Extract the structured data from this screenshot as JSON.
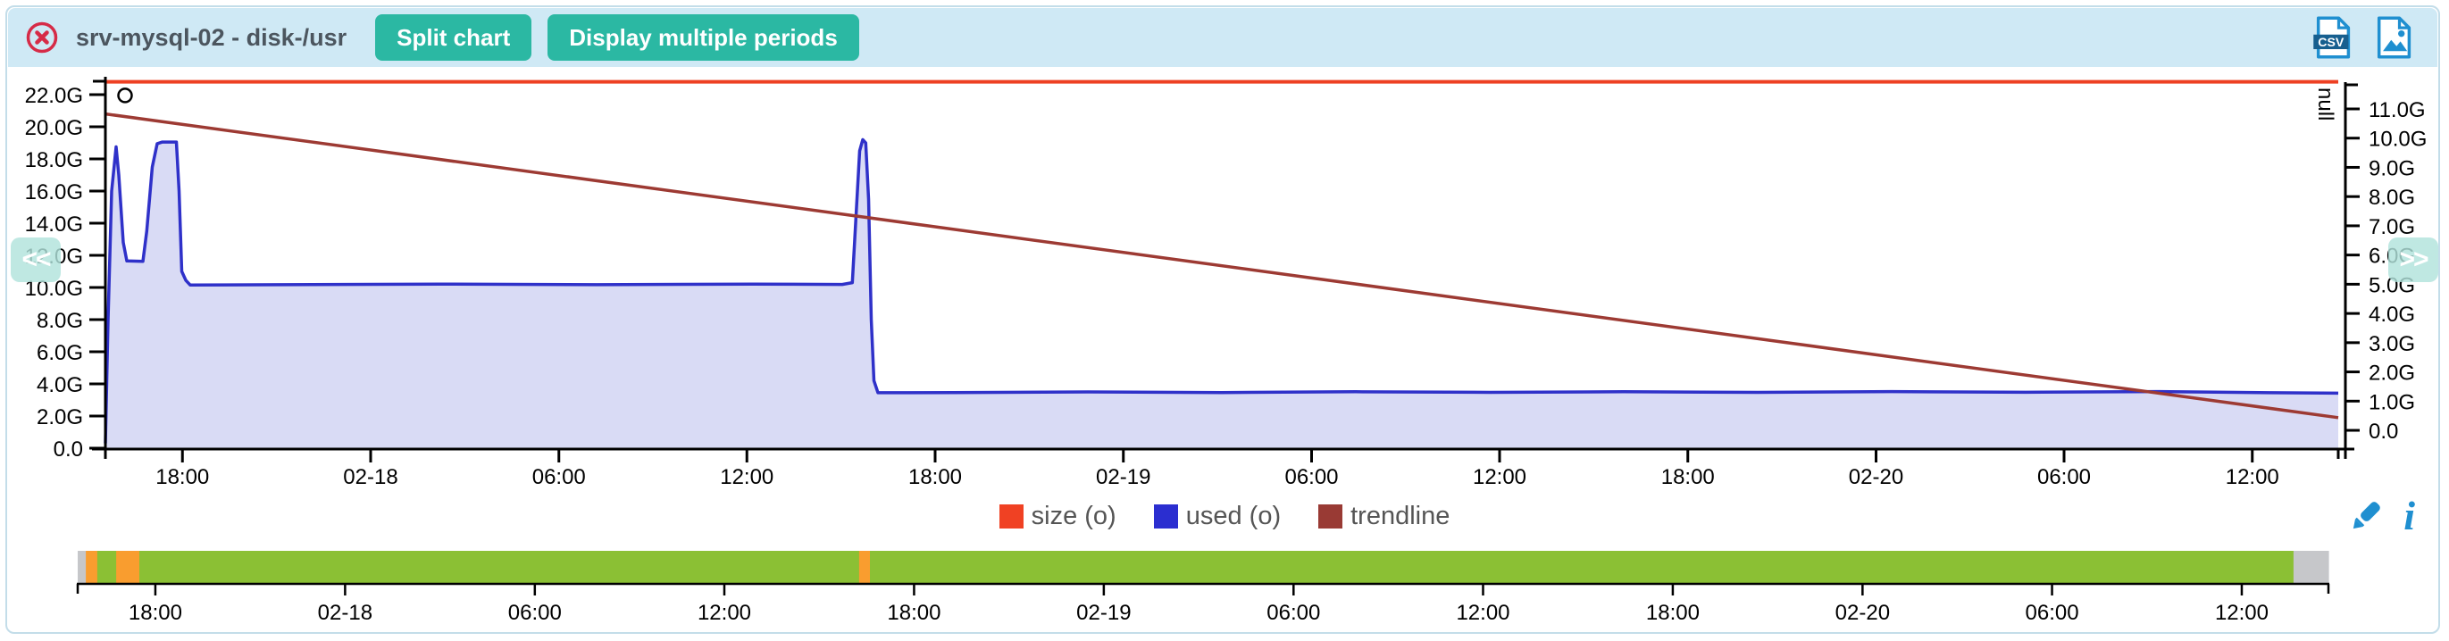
{
  "header": {
    "title": "srv-mysql-02 - disk-/usr",
    "buttons": [
      {
        "label": "Split chart"
      },
      {
        "label": "Display multiple periods"
      }
    ],
    "csv_badge": "CSV"
  },
  "nav": {
    "prev_label": "<<",
    "next_label": ">>"
  },
  "colors": {
    "header_bg": "#cfe9f5",
    "card_border": "#c3dde9",
    "accent_teal": "#2bb8a3",
    "close_red": "#d62b47",
    "icon_blue": "#1f8fd0",
    "axis_black": "#000000",
    "timeline_ok": "#8bc034",
    "timeline_warning": "#f99d2f",
    "timeline_nodata": "#c6c7ca"
  },
  "chart_data": {
    "type": "area",
    "title": "",
    "unit": "G",
    "x_axis": {
      "ticks": [
        {
          "label": "18:00",
          "t": 0.0345
        },
        {
          "label": "02-18",
          "t": 0.1188
        },
        {
          "label": "06:00",
          "t": 0.2031
        },
        {
          "label": "12:00",
          "t": 0.2873
        },
        {
          "label": "18:00",
          "t": 0.3716
        },
        {
          "label": "02-19",
          "t": 0.4559
        },
        {
          "label": "06:00",
          "t": 0.5402
        },
        {
          "label": "12:00",
          "t": 0.6244
        },
        {
          "label": "18:00",
          "t": 0.7087
        },
        {
          "label": "02-20",
          "t": 0.793
        },
        {
          "label": "06:00",
          "t": 0.8772
        },
        {
          "label": "12:00",
          "t": 0.9615
        }
      ]
    },
    "y_axis_left": {
      "tick_labels": [
        "22.0G",
        "20.0G",
        "18.0G",
        "16.0G",
        "14.0G",
        "12.0G",
        "10.0G",
        "8.0G",
        "6.0G",
        "4.0G",
        "2.0G",
        "0.0"
      ],
      "tick_values": [
        22,
        20,
        18,
        16,
        14,
        12,
        10,
        8,
        6,
        4,
        2,
        0
      ],
      "range": [
        0,
        23
      ]
    },
    "y_axis_right": {
      "label": "null",
      "tick_labels": [
        "11.0G",
        "10.0G",
        "9.0G",
        "8.0G",
        "7.0G",
        "6.0G",
        "5.0G",
        "4.0G",
        "3.0G",
        "2.0G",
        "1.0G",
        "0.0"
      ],
      "range": [
        0,
        11.8
      ]
    },
    "series": [
      {
        "name": "size (o)",
        "type": "hline",
        "value": 22.8,
        "color": "#ee4023"
      },
      {
        "name": "used (o)",
        "type": "area",
        "color": "#2f31c9",
        "fill": "#d9dbf5",
        "points": [
          [
            0,
            0.3
          ],
          [
            0.0012,
            8
          ],
          [
            0.0028,
            16
          ],
          [
            0.0048,
            18.75
          ],
          [
            0.006,
            17
          ],
          [
            0.008,
            12.8
          ],
          [
            0.0096,
            11.65
          ],
          [
            0.0168,
            11.62
          ],
          [
            0.0185,
            13.5
          ],
          [
            0.021,
            17.5
          ],
          [
            0.0232,
            18.95
          ],
          [
            0.0255,
            19.05
          ],
          [
            0.0318,
            19.05
          ],
          [
            0.033,
            16
          ],
          [
            0.0342,
            11
          ],
          [
            0.036,
            10.45
          ],
          [
            0.038,
            10.15
          ],
          [
            0.08,
            10.17
          ],
          [
            0.15,
            10.21
          ],
          [
            0.22,
            10.17
          ],
          [
            0.29,
            10.21
          ],
          [
            0.33,
            10.19
          ],
          [
            0.3345,
            10.3
          ],
          [
            0.336,
            14
          ],
          [
            0.3378,
            18.5
          ],
          [
            0.3392,
            19.2
          ],
          [
            0.3405,
            19
          ],
          [
            0.3418,
            15.5
          ],
          [
            0.343,
            8
          ],
          [
            0.3442,
            4.2
          ],
          [
            0.346,
            3.45
          ],
          [
            0.38,
            3.46
          ],
          [
            0.44,
            3.5
          ],
          [
            0.5,
            3.46
          ],
          [
            0.56,
            3.51
          ],
          [
            0.62,
            3.47
          ],
          [
            0.68,
            3.51
          ],
          [
            0.74,
            3.47
          ],
          [
            0.8,
            3.52
          ],
          [
            0.86,
            3.48
          ],
          [
            0.92,
            3.52
          ],
          [
            0.97,
            3.45
          ],
          [
            1,
            3.42
          ]
        ]
      },
      {
        "name": "trendline",
        "type": "line",
        "color": "#9d3a33",
        "points": [
          [
            0,
            20.8
          ],
          [
            1,
            1.9
          ]
        ]
      }
    ],
    "marker": {
      "t": 0.0088,
      "value": 21.95
    },
    "legend": [
      {
        "label": "size (o)",
        "color": "#f04123"
      },
      {
        "label": "used (o)",
        "color": "#2b2ed0"
      },
      {
        "label": "trendline",
        "color": "#993a34"
      }
    ]
  },
  "timeline": {
    "segments": [
      {
        "status": "nodata",
        "from": 0.0,
        "to": 0.0036,
        "color": "#c6c7ca"
      },
      {
        "status": "warning",
        "from": 0.0036,
        "to": 0.0087,
        "color": "#f99d2f"
      },
      {
        "status": "ok",
        "from": 0.0087,
        "to": 0.0171,
        "color": "#8bc034"
      },
      {
        "status": "warning",
        "from": 0.0171,
        "to": 0.0274,
        "color": "#f99d2f"
      },
      {
        "status": "ok",
        "from": 0.0274,
        "to": 0.3472,
        "color": "#8bc034"
      },
      {
        "status": "warning",
        "from": 0.3472,
        "to": 0.352,
        "color": "#f99d2f"
      },
      {
        "status": "ok",
        "from": 0.352,
        "to": 0.9845,
        "color": "#8bc034"
      },
      {
        "status": "nodata",
        "from": 0.9845,
        "to": 1.0,
        "color": "#c6c7ca"
      }
    ]
  }
}
